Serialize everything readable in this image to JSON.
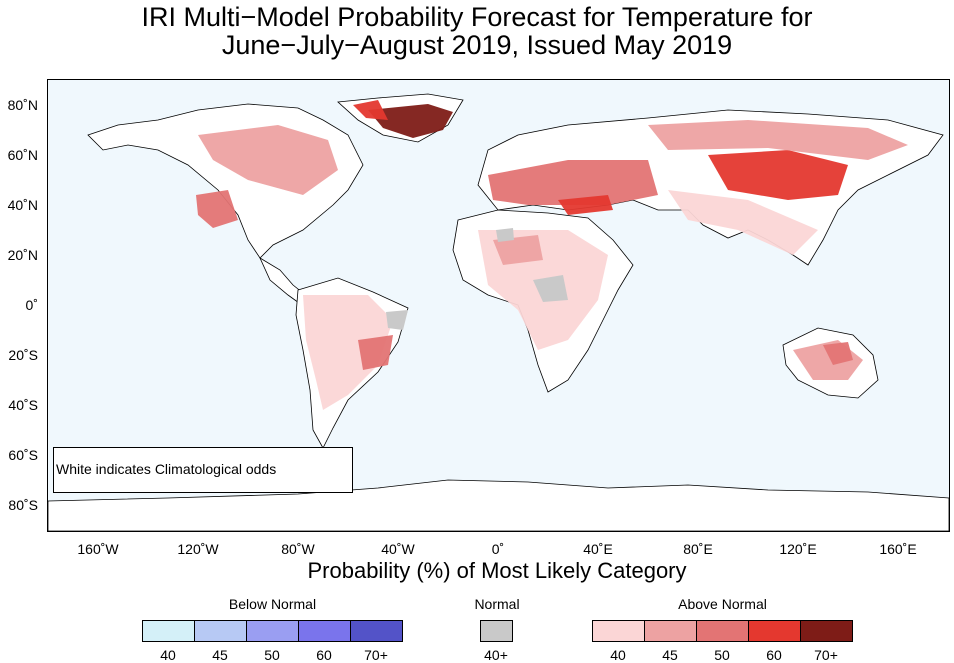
{
  "title": {
    "line1": "IRI Multi−Model Probability Forecast for Temperature for",
    "line2": "June−July−August 2019, Issued May 2019"
  },
  "map": {
    "y_ticks": [
      "80˚N",
      "60˚N",
      "40˚N",
      "20˚N",
      "0˚",
      "20˚S",
      "40˚S",
      "60˚S",
      "80˚S"
    ],
    "x_ticks": [
      "160˚W",
      "120˚W",
      "80˚W",
      "40˚W",
      "0˚",
      "40˚E",
      "80˚E",
      "120˚E",
      "160˚E"
    ],
    "note": "White indicates Climatological odds",
    "colors": {
      "ocean": "#f0f8fd",
      "land_climatology": "#ffffff",
      "coast": "#000000"
    }
  },
  "xaxis_title": "Probability (%) of Most Likely Category",
  "legend": {
    "below": {
      "title": "Below Normal",
      "labels": [
        "40",
        "45",
        "50",
        "60",
        "70+"
      ],
      "colors": [
        "#d4f0f8",
        "#b7c9f4",
        "#9a9ef2",
        "#7a74ec",
        "#5353c8"
      ]
    },
    "normal": {
      "title": "Normal",
      "labels": [
        "40+"
      ],
      "colors": [
        "#c9c9c9"
      ]
    },
    "above": {
      "title": "Above Normal",
      "labels": [
        "40",
        "45",
        "50",
        "60",
        "70+"
      ],
      "colors": [
        "#fbd6d6",
        "#eda2a2",
        "#e37474",
        "#e4382f",
        "#7e1c17"
      ]
    }
  }
}
